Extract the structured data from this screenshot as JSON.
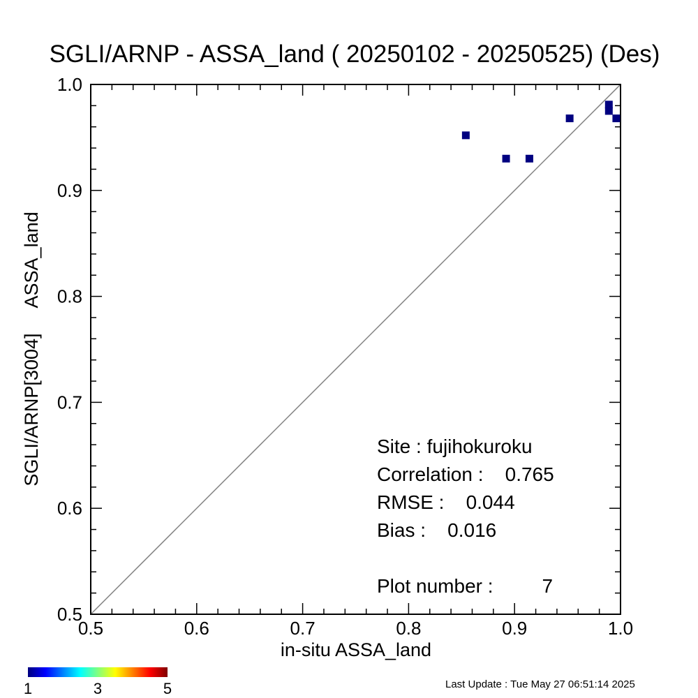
{
  "chart_data": {
    "type": "scatter",
    "title": "SGLI/ARNP - ASSA_land ( 20250102 - 20250525) (Des)",
    "xlabel": "in-situ ASSA_land",
    "ylabel": "SGLI/ARNP[3004]     ASSA_land",
    "xlim": [
      0.5,
      1.0
    ],
    "ylim": [
      0.5,
      1.0
    ],
    "x_ticks": [
      "0.5",
      "0.6",
      "0.7",
      "0.8",
      "0.9",
      "1.0"
    ],
    "y_ticks": [
      "0.5",
      "0.6",
      "0.7",
      "0.8",
      "0.9",
      "1.0"
    ],
    "one_to_one_line": true,
    "grid": false,
    "marker_color": "#000080",
    "line_color": "#808080",
    "points": [
      {
        "x": 0.854,
        "y": 0.952
      },
      {
        "x": 0.892,
        "y": 0.93
      },
      {
        "x": 0.914,
        "y": 0.93
      },
      {
        "x": 0.952,
        "y": 0.968
      },
      {
        "x": 0.989,
        "y": 0.981
      },
      {
        "x": 0.989,
        "y": 0.975
      },
      {
        "x": 0.996,
        "y": 0.968
      }
    ],
    "stats": {
      "site": "Site : fujihokuroku",
      "correlation": "Correlation :    0.765",
      "rmse": "RMSE :    0.044",
      "bias": "Bias :    0.016",
      "plot_number": "Plot number :         7"
    },
    "colorbar": {
      "colors": [
        "#00007f",
        "#0000ff",
        "#0080ff",
        "#00ffff",
        "#80ff80",
        "#ffff00",
        "#ff8000",
        "#ff0000",
        "#7f0000"
      ],
      "labels": [
        "1",
        "3",
        "5"
      ],
      "min": 1,
      "max": 5
    }
  },
  "footer": {
    "last_update": "Last Update : Tue May 27 06:51:14 2025"
  }
}
